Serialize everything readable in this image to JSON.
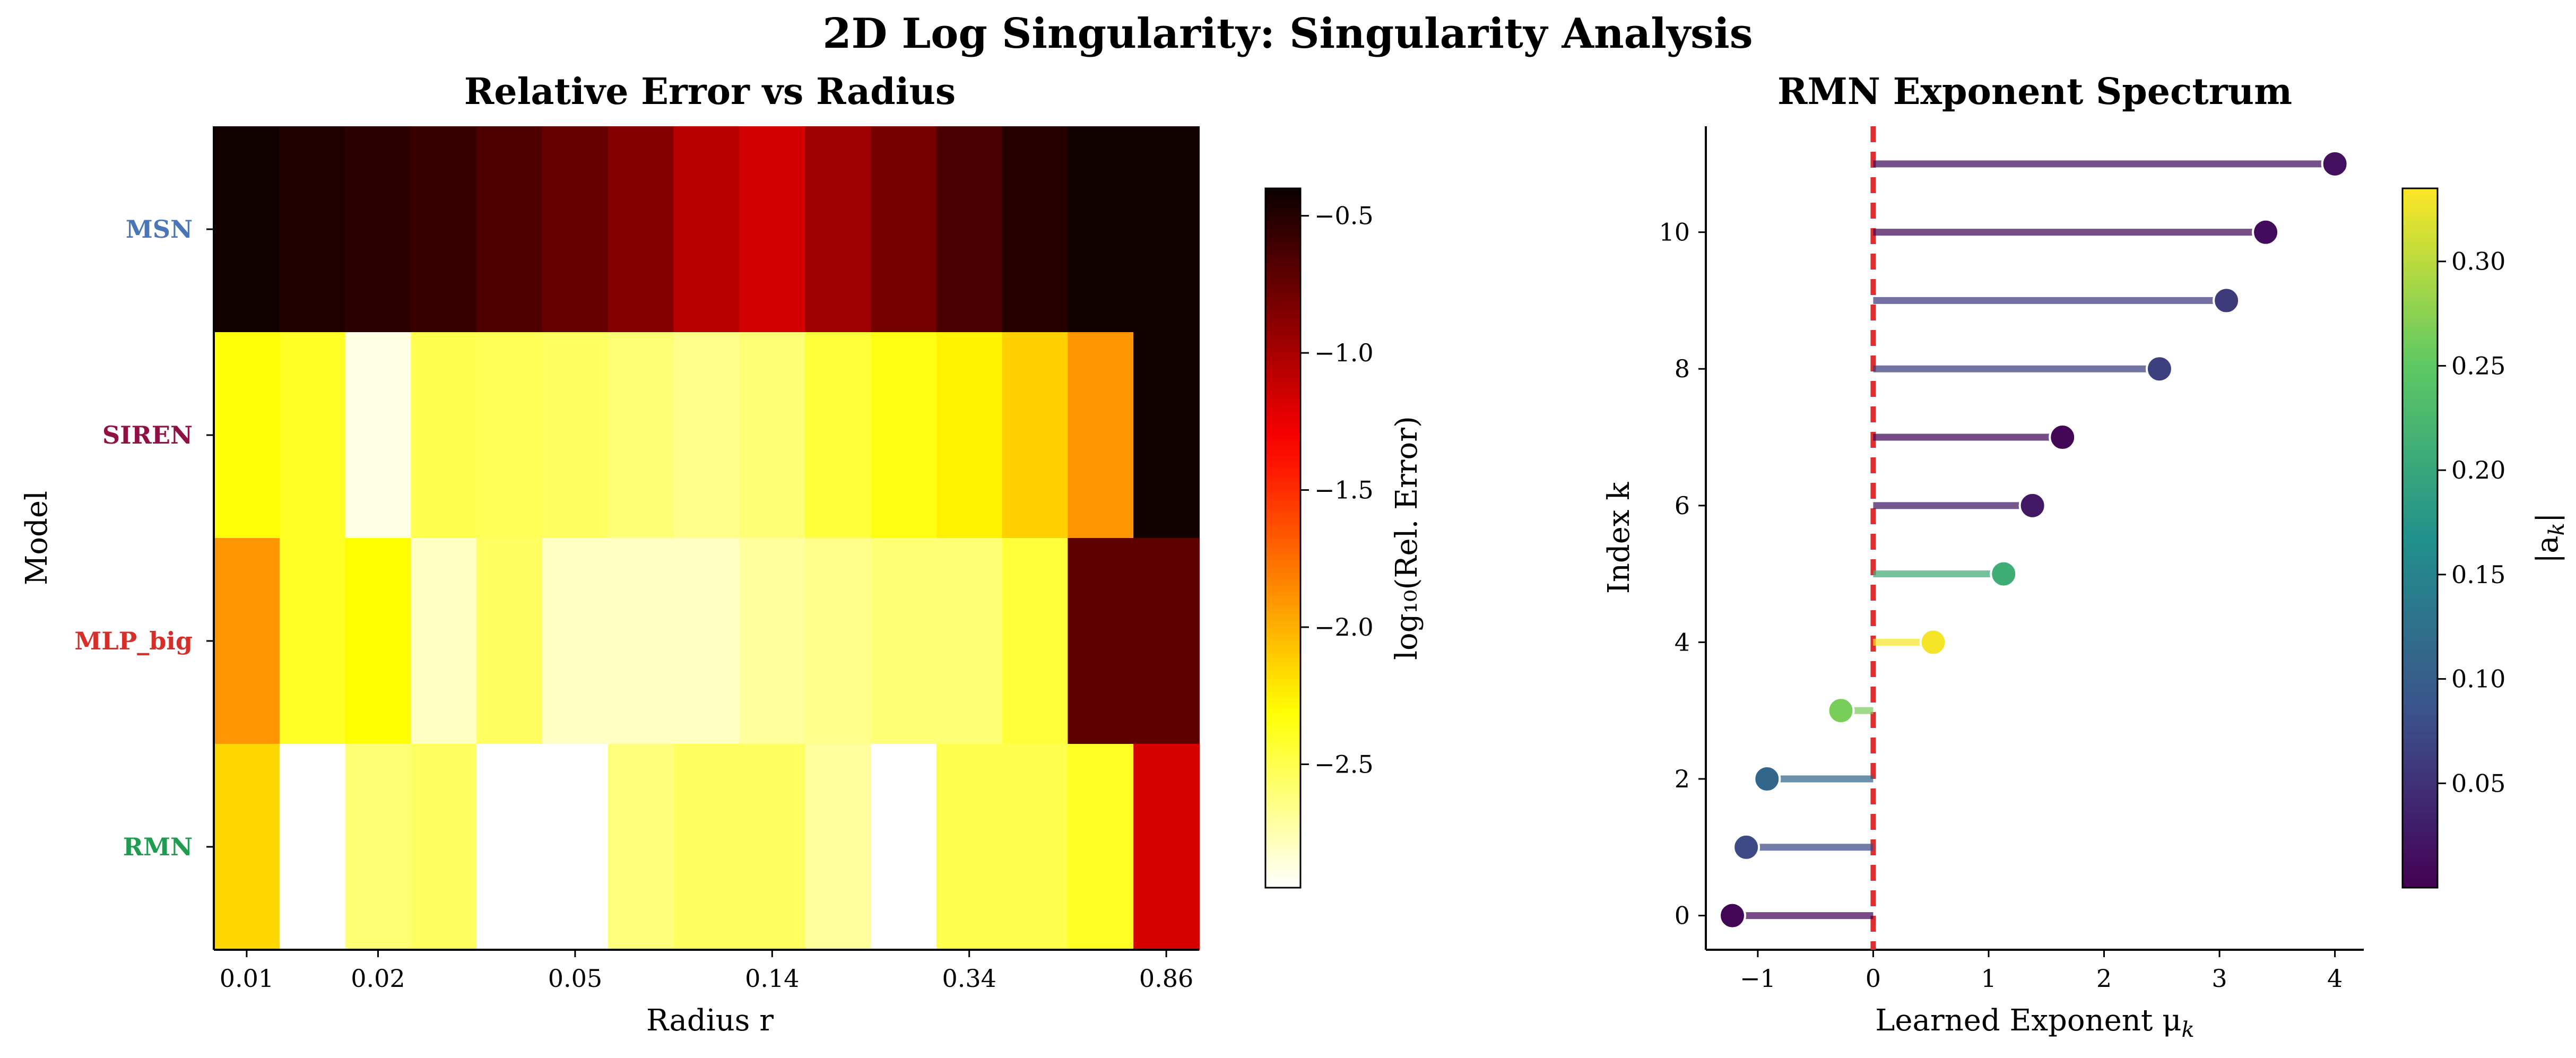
{
  "figure_title": "2D Log Singularity: Singularity Analysis",
  "colors": {
    "MSN": "#4a76b8",
    "SIREN": "#8f1044",
    "MLP_big": "#d62f2a",
    "RMN": "#1f9c4f",
    "zero_line": "#dc3030"
  },
  "chart_data": [
    {
      "type": "heatmap",
      "title": "Relative Error vs Radius",
      "xlabel": "Radius r",
      "ylabel": "Model",
      "rows": [
        "MSN",
        "SIREN",
        "MLP_big",
        "RMN"
      ],
      "x_tick_labels": [
        "0.01",
        "0.02",
        "0.05",
        "0.14",
        "0.34",
        "0.86"
      ],
      "x_tick_columns": [
        0,
        2,
        5,
        8,
        11,
        14
      ],
      "colormap": "hot",
      "clim": [
        -2.95,
        -0.4
      ],
      "values": [
        [
          -0.42,
          -0.48,
          -0.52,
          -0.58,
          -0.66,
          -0.74,
          -0.86,
          -1.06,
          -1.16,
          -0.96,
          -0.8,
          -0.64,
          -0.5,
          -0.42,
          -0.42
        ],
        [
          -2.32,
          -2.4,
          -2.88,
          -2.5,
          -2.52,
          -2.55,
          -2.6,
          -2.65,
          -2.6,
          -2.45,
          -2.35,
          -2.25,
          -2.12,
          -1.9,
          -0.42
        ],
        [
          -1.9,
          -2.4,
          -2.3,
          -2.8,
          -2.55,
          -2.8,
          -2.8,
          -2.8,
          -2.7,
          -2.65,
          -2.6,
          -2.6,
          -2.45,
          -0.72,
          -0.72
        ],
        [
          -2.15,
          -2.95,
          -2.6,
          -2.55,
          -2.95,
          -2.95,
          -2.62,
          -2.55,
          -2.55,
          -2.7,
          -2.95,
          -2.5,
          -2.5,
          -2.4,
          -1.18
        ]
      ],
      "colorbar": {
        "label": "log₁₀(Rel. Error)",
        "ticks": [
          -0.5,
          -1.0,
          -1.5,
          -2.0,
          -2.5
        ],
        "tick_labels": [
          "−0.5",
          "−1.0",
          "−1.5",
          "−2.0",
          "−2.5"
        ]
      }
    },
    {
      "type": "lollipop",
      "title": "RMN Exponent Spectrum",
      "xlabel": "Learned Exponent μ",
      "xlabel_sub": "k",
      "ylabel": "Index k",
      "xlim": [
        -1.45,
        4.25
      ],
      "ylim": [
        -0.5,
        11.55
      ],
      "x_ticks": [
        -1,
        0,
        1,
        2,
        3,
        4
      ],
      "x_tick_labels": [
        "−1",
        "0",
        "1",
        "2",
        "3",
        "4"
      ],
      "y_ticks": [
        0,
        2,
        4,
        6,
        8,
        10
      ],
      "y_tick_labels": [
        "0",
        "2",
        "4",
        "6",
        "8",
        "10"
      ],
      "points": [
        {
          "k": 0,
          "mu": -1.22,
          "amp": 0.005
        },
        {
          "k": 1,
          "mu": -1.1,
          "amp": 0.075
        },
        {
          "k": 2,
          "mu": -0.92,
          "amp": 0.11
        },
        {
          "k": 3,
          "mu": -0.28,
          "amp": 0.265
        },
        {
          "k": 4,
          "mu": 0.52,
          "amp": 0.33
        },
        {
          "k": 5,
          "mu": 1.13,
          "amp": 0.21
        },
        {
          "k": 6,
          "mu": 1.38,
          "amp": 0.025
        },
        {
          "k": 7,
          "mu": 1.64,
          "amp": 0.005
        },
        {
          "k": 8,
          "mu": 2.48,
          "amp": 0.065
        },
        {
          "k": 9,
          "mu": 3.06,
          "amp": 0.06
        },
        {
          "k": 10,
          "mu": 3.4,
          "amp": 0.01
        },
        {
          "k": 11,
          "mu": 4.0,
          "amp": 0.015
        }
      ],
      "reference_line_x": 0,
      "colormap": "viridis",
      "clim": [
        0.0,
        0.335
      ],
      "colorbar": {
        "label": "|a",
        "label_sub": "k",
        "label_end": "|",
        "ticks": [
          0.05,
          0.1,
          0.15,
          0.2,
          0.25,
          0.3
        ],
        "tick_labels": [
          "0.05",
          "0.10",
          "0.15",
          "0.20",
          "0.25",
          "0.30"
        ]
      }
    }
  ]
}
